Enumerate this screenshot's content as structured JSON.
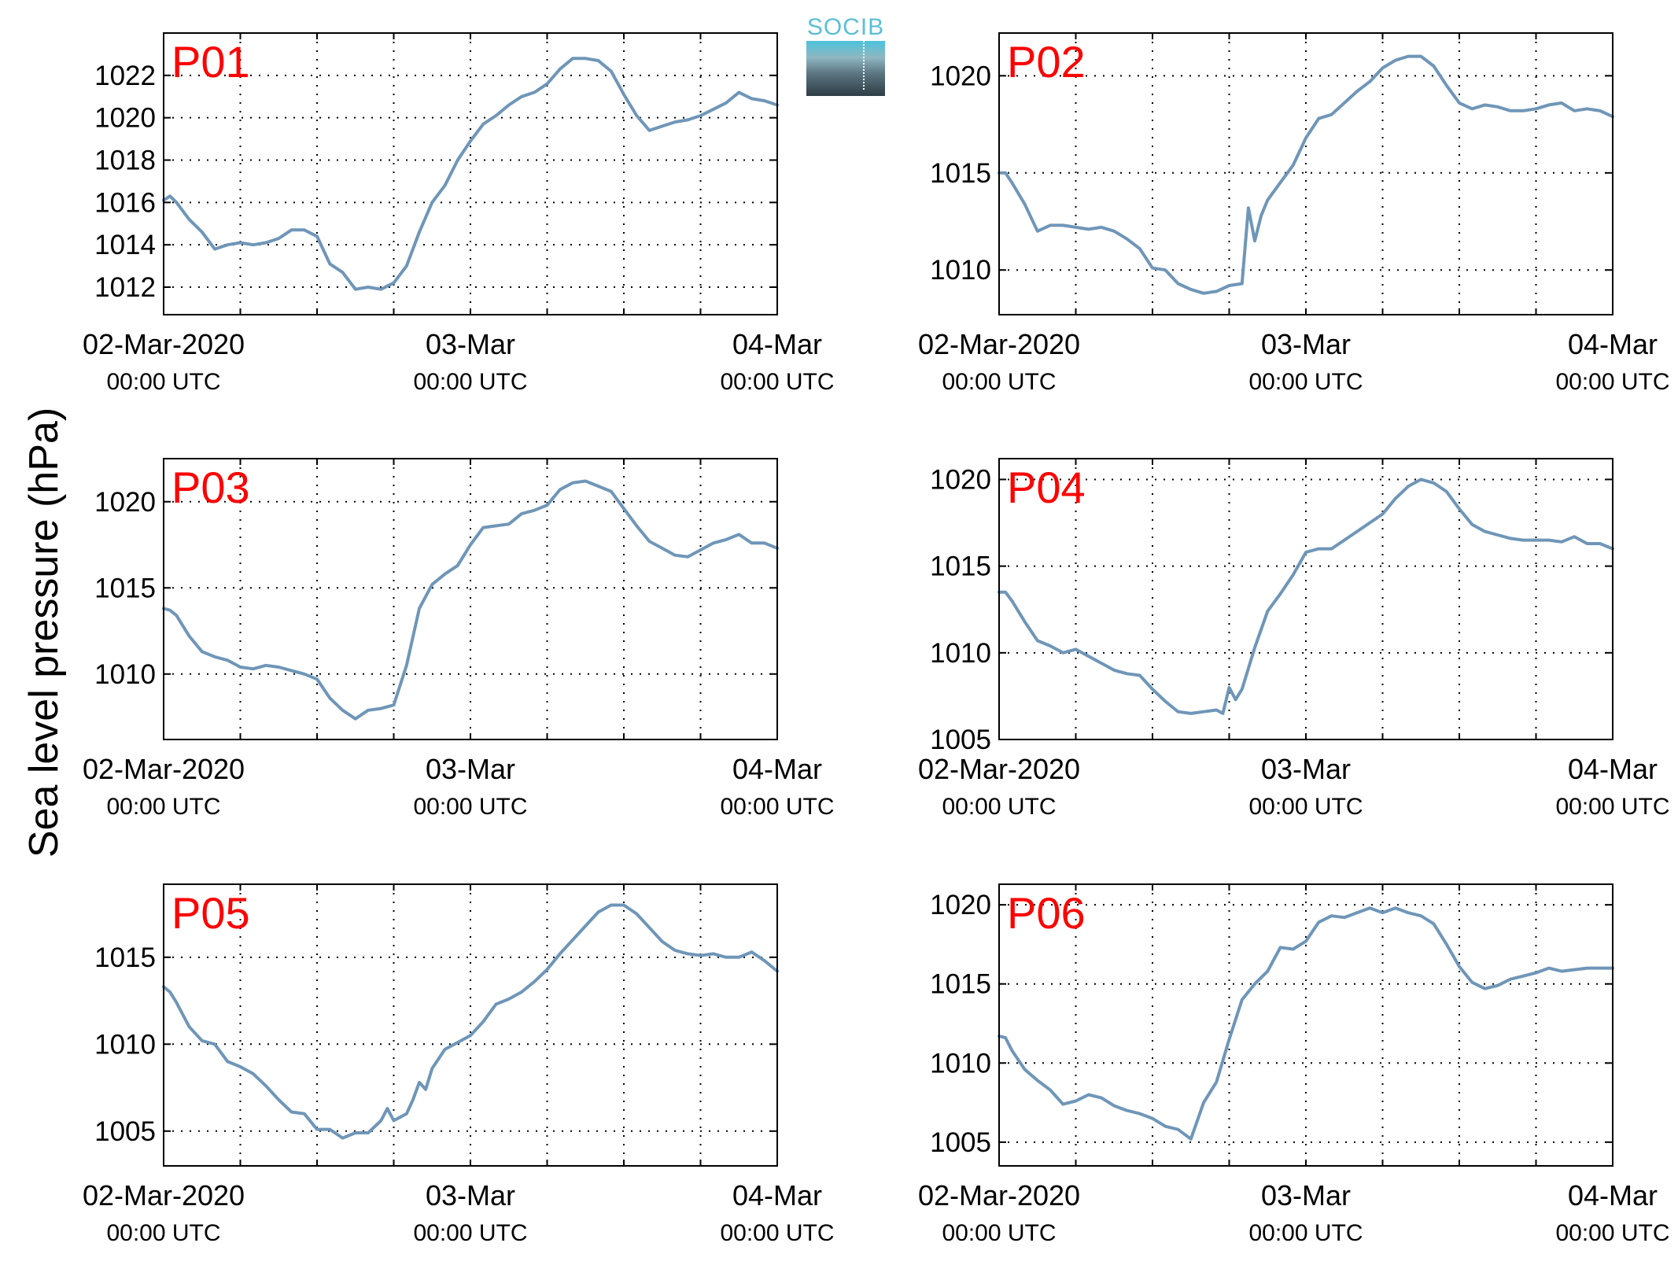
{
  "ylabel": "Sea level pressure (hPa)",
  "logo_text": "SOCIB",
  "colors": {
    "line": "#6f96b8",
    "panel_label": "#ff0000",
    "axes": "#000000",
    "grid": "#000000"
  },
  "x_tick_labels": [
    {
      "date": "02-Mar-2020",
      "time": "00:00 UTC"
    },
    {
      "date": "03-Mar",
      "time": "00:00 UTC"
    },
    {
      "date": "04-Mar",
      "time": "00:00 UTC"
    }
  ],
  "chart_data": [
    {
      "type": "line",
      "label": "P01",
      "xlim": [
        0,
        48
      ],
      "ylim": [
        1010.7,
        1024.0
      ],
      "yticks": [
        1012,
        1014,
        1016,
        1018,
        1020,
        1022
      ],
      "grid": true,
      "x_unit": "hours since 02-Mar-2020 00:00 UTC",
      "x": [
        0,
        0.5,
        1,
        2,
        3,
        4,
        5,
        6,
        7,
        8,
        9,
        10,
        11,
        12,
        13,
        14,
        15,
        16,
        17,
        18,
        19,
        20,
        21,
        22,
        23,
        24,
        25,
        26,
        27,
        28,
        29,
        30,
        31,
        32,
        33,
        34,
        35,
        36,
        37,
        38,
        39,
        40,
        41,
        42,
        43,
        44,
        45,
        46,
        47,
        48
      ],
      "y": [
        1016.1,
        1016.3,
        1016.0,
        1015.2,
        1014.6,
        1013.8,
        1014.0,
        1014.1,
        1014.0,
        1014.1,
        1014.3,
        1014.7,
        1014.7,
        1014.4,
        1013.1,
        1012.7,
        1011.9,
        1012.0,
        1011.9,
        1012.2,
        1013.0,
        1014.6,
        1016.0,
        1016.8,
        1018.0,
        1018.9,
        1019.7,
        1020.1,
        1020.6,
        1021.0,
        1021.2,
        1021.6,
        1022.3,
        1022.8,
        1022.8,
        1022.7,
        1022.2,
        1021.1,
        1020.1,
        1019.4,
        1019.6,
        1019.8,
        1019.9,
        1020.1,
        1020.4,
        1020.7,
        1021.2,
        1020.9,
        1020.8,
        1020.6
      ]
    },
    {
      "type": "line",
      "label": "P02",
      "xlim": [
        0,
        48
      ],
      "ylim": [
        1007.7,
        1022.2
      ],
      "yticks": [
        1010,
        1015,
        1020
      ],
      "grid": true,
      "x_unit": "hours since 02-Mar-2020 00:00 UTC",
      "x": [
        0,
        0.5,
        1,
        2,
        3,
        4,
        5,
        6,
        7,
        8,
        9,
        10,
        11,
        12,
        13,
        14,
        15,
        16,
        17,
        18,
        19,
        19.5,
        20,
        20.5,
        21,
        22,
        23,
        24,
        25,
        26,
        27,
        28,
        29,
        30,
        31,
        32,
        33,
        34,
        35,
        36,
        37,
        38,
        39,
        40,
        41,
        42,
        43,
        44,
        45,
        46,
        47,
        48
      ],
      "y": [
        1015.0,
        1015.0,
        1014.5,
        1013.4,
        1012.0,
        1012.3,
        1012.3,
        1012.2,
        1012.1,
        1012.2,
        1012.0,
        1011.6,
        1011.1,
        1010.1,
        1010.0,
        1009.3,
        1009.0,
        1008.8,
        1008.9,
        1009.2,
        1009.3,
        1013.2,
        1011.5,
        1012.8,
        1013.6,
        1014.5,
        1015.4,
        1016.8,
        1017.8,
        1018.0,
        1018.6,
        1019.2,
        1019.7,
        1020.4,
        1020.8,
        1021.0,
        1021.0,
        1020.5,
        1019.5,
        1018.6,
        1018.3,
        1018.5,
        1018.4,
        1018.2,
        1018.2,
        1018.3,
        1018.5,
        1018.6,
        1018.2,
        1018.3,
        1018.2,
        1017.9
      ]
    },
    {
      "type": "line",
      "label": "P03",
      "xlim": [
        0,
        48
      ],
      "ylim": [
        1006.2,
        1022.5
      ],
      "yticks": [
        1010,
        1015,
        1020
      ],
      "grid": true,
      "x_unit": "hours since 02-Mar-2020 00:00 UTC",
      "x": [
        0,
        0.5,
        1,
        2,
        3,
        4,
        5,
        6,
        7,
        8,
        9,
        10,
        11,
        12,
        13,
        14,
        15,
        16,
        17,
        18,
        19,
        20,
        21,
        22,
        23,
        24,
        25,
        26,
        27,
        28,
        29,
        30,
        31,
        32,
        33,
        34,
        35,
        36,
        37,
        38,
        39,
        40,
        41,
        42,
        43,
        44,
        45,
        46,
        47,
        48
      ],
      "y": [
        1013.8,
        1013.7,
        1013.4,
        1012.2,
        1011.3,
        1011.0,
        1010.8,
        1010.4,
        1010.3,
        1010.5,
        1010.4,
        1010.2,
        1010.0,
        1009.7,
        1008.6,
        1007.9,
        1007.4,
        1007.9,
        1008.0,
        1008.2,
        1010.5,
        1013.8,
        1015.2,
        1015.8,
        1016.3,
        1017.5,
        1018.5,
        1018.6,
        1018.7,
        1019.3,
        1019.5,
        1019.8,
        1020.7,
        1021.1,
        1021.2,
        1020.9,
        1020.6,
        1019.6,
        1018.6,
        1017.7,
        1017.3,
        1016.9,
        1016.8,
        1017.2,
        1017.6,
        1017.8,
        1018.1,
        1017.6,
        1017.6,
        1017.3
      ]
    },
    {
      "type": "line",
      "label": "P04",
      "xlim": [
        0,
        48
      ],
      "ylim": [
        1005.0,
        1021.2
      ],
      "yticks": [
        1005,
        1010,
        1015,
        1020
      ],
      "grid": true,
      "x_unit": "hours since 02-Mar-2020 00:00 UTC",
      "x": [
        0,
        0.5,
        1,
        2,
        3,
        4,
        5,
        6,
        7,
        8,
        9,
        10,
        11,
        12,
        13,
        14,
        15,
        16,
        17,
        17.5,
        18,
        18.5,
        19,
        20,
        21,
        22,
        23,
        24,
        25,
        26,
        27,
        28,
        29,
        30,
        31,
        32,
        33,
        34,
        35,
        36,
        37,
        38,
        39,
        40,
        41,
        42,
        43,
        44,
        45,
        46,
        47,
        48
      ],
      "y": [
        1013.5,
        1013.5,
        1013.0,
        1011.8,
        1010.7,
        1010.4,
        1010.0,
        1010.2,
        1009.8,
        1009.4,
        1009.0,
        1008.8,
        1008.7,
        1007.9,
        1007.2,
        1006.6,
        1006.5,
        1006.6,
        1006.7,
        1006.5,
        1008.0,
        1007.3,
        1007.9,
        1010.3,
        1012.4,
        1013.4,
        1014.5,
        1015.8,
        1016.0,
        1016.0,
        1016.5,
        1017.0,
        1017.5,
        1018.0,
        1018.9,
        1019.6,
        1020.0,
        1019.8,
        1019.3,
        1018.3,
        1017.4,
        1017.0,
        1016.8,
        1016.6,
        1016.5,
        1016.5,
        1016.5,
        1016.4,
        1016.7,
        1016.3,
        1016.3,
        1016.0
      ]
    },
    {
      "type": "line",
      "label": "P05",
      "xlim": [
        0,
        48
      ],
      "ylim": [
        1003.0,
        1019.2
      ],
      "yticks": [
        1005,
        1010,
        1015
      ],
      "grid": true,
      "x_unit": "hours since 02-Mar-2020 00:00 UTC",
      "x": [
        0,
        0.5,
        1,
        2,
        3,
        4,
        5,
        6,
        7,
        8,
        9,
        10,
        11,
        12,
        13,
        14,
        15,
        16,
        17,
        17.5,
        18,
        19,
        19.5,
        20,
        20.5,
        21,
        22,
        23,
        24,
        25,
        26,
        27,
        28,
        29,
        30,
        31,
        32,
        33,
        34,
        35,
        36,
        37,
        38,
        39,
        40,
        41,
        42,
        43,
        44,
        45,
        46,
        47,
        48
      ],
      "y": [
        1013.3,
        1013.0,
        1012.4,
        1011.0,
        1010.2,
        1010.0,
        1009.0,
        1008.7,
        1008.3,
        1007.6,
        1006.8,
        1006.1,
        1006.0,
        1005.1,
        1005.1,
        1004.6,
        1004.9,
        1004.9,
        1005.6,
        1006.3,
        1005.6,
        1006.0,
        1006.8,
        1007.8,
        1007.4,
        1008.6,
        1009.7,
        1010.1,
        1010.5,
        1011.3,
        1012.3,
        1012.6,
        1013.0,
        1013.6,
        1014.3,
        1015.2,
        1016.0,
        1016.8,
        1017.6,
        1018.0,
        1018.0,
        1017.5,
        1016.7,
        1015.9,
        1015.4,
        1015.2,
        1015.1,
        1015.2,
        1015.0,
        1015.0,
        1015.3,
        1014.8,
        1014.2
      ]
    },
    {
      "type": "line",
      "label": "P06",
      "xlim": [
        0,
        48
      ],
      "ylim": [
        1003.5,
        1021.3
      ],
      "yticks": [
        1005,
        1010,
        1015,
        1020
      ],
      "grid": true,
      "x_unit": "hours since 02-Mar-2020 00:00 UTC",
      "x": [
        0,
        0.5,
        1,
        2,
        3,
        4,
        5,
        6,
        7,
        8,
        9,
        10,
        11,
        12,
        13,
        14,
        15,
        16,
        17,
        18,
        19,
        20,
        21,
        22,
        23,
        24,
        25,
        26,
        27,
        28,
        29,
        30,
        31,
        32,
        33,
        34,
        35,
        36,
        37,
        38,
        39,
        40,
        41,
        42,
        43,
        44,
        45,
        46,
        47,
        48
      ],
      "y": [
        1011.7,
        1011.6,
        1010.8,
        1009.6,
        1008.9,
        1008.3,
        1007.4,
        1007.6,
        1008.0,
        1007.8,
        1007.3,
        1007.0,
        1006.8,
        1006.5,
        1006.0,
        1005.8,
        1005.2,
        1007.5,
        1008.8,
        1011.5,
        1014.0,
        1015.0,
        1015.8,
        1017.3,
        1017.2,
        1017.7,
        1018.9,
        1019.3,
        1019.2,
        1019.5,
        1019.8,
        1019.5,
        1019.8,
        1019.5,
        1019.3,
        1018.8,
        1017.5,
        1016.1,
        1015.1,
        1014.7,
        1014.9,
        1015.3,
        1015.5,
        1015.7,
        1016.0,
        1015.8,
        1015.9,
        1016.0,
        1016.0,
        1016.0
      ]
    }
  ]
}
